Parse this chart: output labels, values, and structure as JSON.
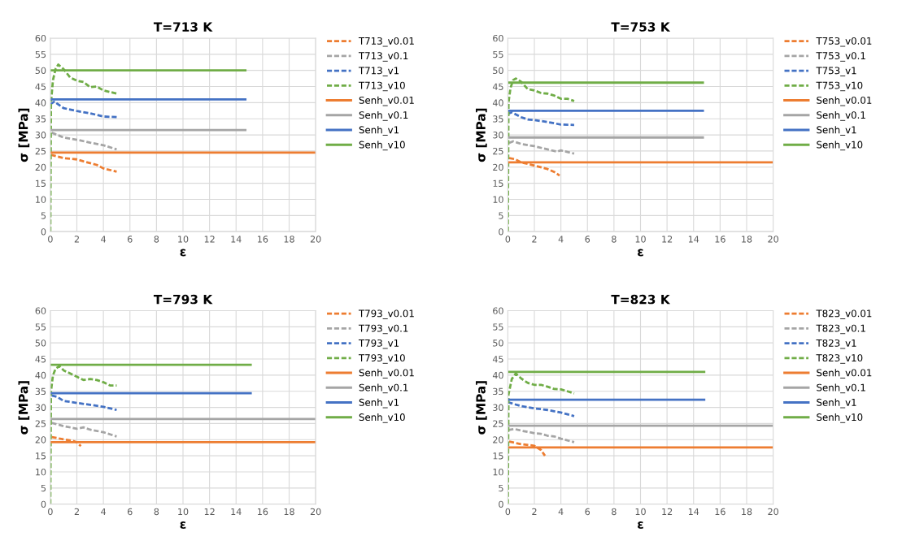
{
  "chart_data": [
    {
      "type": "line",
      "title": "T=713 K",
      "xlabel": "ε",
      "ylabel": "σ [MPa]",
      "xlim": [
        0,
        20
      ],
      "ylim": [
        0,
        60
      ],
      "xticks": [
        0,
        2,
        4,
        6,
        8,
        10,
        12,
        14,
        16,
        18,
        20
      ],
      "yticks": [
        0,
        5,
        10,
        15,
        20,
        25,
        30,
        35,
        40,
        45,
        50,
        55,
        60
      ],
      "grid": true,
      "legend": "top right",
      "marker": "none",
      "series": [
        {
          "name": "T713_v0.01",
          "color": "#ed7d31",
          "line_style": "dashed",
          "x": [
            0.05,
            1,
            2,
            2.5,
            3.5,
            4,
            5
          ],
          "values": [
            23.8,
            22.8,
            22.4,
            21.8,
            20.7,
            19.6,
            18.6
          ]
        },
        {
          "name": "T713_v0.1",
          "color": "#a5a5a5",
          "line_style": "dashed",
          "x": [
            0.1,
            1,
            2,
            3,
            4,
            5
          ],
          "values": [
            30.7,
            29.2,
            28.5,
            27.6,
            26.8,
            25.5
          ]
        },
        {
          "name": "T713_v1",
          "color": "#4472c4",
          "line_style": "dashed",
          "x": [
            0,
            0.3,
            1,
            2,
            3,
            4,
            5
          ],
          "values": [
            39.5,
            40.3,
            38.3,
            37.4,
            36.7,
            35.7,
            35.5
          ]
        },
        {
          "name": "T713_v10",
          "color": "#70ad47",
          "line_style": "dashed",
          "x": [
            0,
            0.05,
            0.2,
            0.4,
            0.6,
            1,
            1.5,
            2,
            2.5,
            3,
            3.5,
            4,
            5
          ],
          "values": [
            0,
            40,
            47,
            50.5,
            51.8,
            50.4,
            47.8,
            46.8,
            46.4,
            44.8,
            45,
            43.8,
            42.8
          ]
        },
        {
          "name": "Senh_v0.01",
          "color": "#ed7d31",
          "line_style": "solid",
          "x": [
            0,
            20
          ],
          "values": [
            24.5,
            24.5
          ]
        },
        {
          "name": "Senh_v0.1",
          "color": "#a5a5a5",
          "line_style": "solid",
          "x": [
            0,
            14.7
          ],
          "values": [
            31.5,
            31.5
          ]
        },
        {
          "name": "Senh_v1",
          "color": "#4472c4",
          "line_style": "solid",
          "x": [
            0,
            14.7
          ],
          "values": [
            41,
            41
          ]
        },
        {
          "name": "Senh_v10",
          "color": "#70ad47",
          "line_style": "solid",
          "x": [
            0,
            14.7
          ],
          "values": [
            50,
            50
          ]
        }
      ]
    },
    {
      "type": "line",
      "title": "T=753 K",
      "xlabel": "ε",
      "ylabel": "σ [MPa]",
      "xlim": [
        0,
        20
      ],
      "ylim": [
        0,
        60
      ],
      "xticks": [
        0,
        2,
        4,
        6,
        8,
        10,
        12,
        14,
        16,
        18,
        20
      ],
      "yticks": [
        0,
        5,
        10,
        15,
        20,
        25,
        30,
        35,
        40,
        45,
        50,
        55,
        60
      ],
      "grid": true,
      "legend": "top right",
      "marker": "none",
      "series": [
        {
          "name": "T753_v0.01",
          "color": "#ed7d31",
          "line_style": "dashed",
          "x": [
            0.1,
            0.5,
            1,
            2,
            3,
            3.5,
            3.9
          ],
          "values": [
            22.8,
            22.5,
            21.5,
            20.5,
            19.4,
            18.5,
            17.4
          ]
        },
        {
          "name": "T753_v0.1",
          "color": "#a5a5a5",
          "line_style": "dashed",
          "x": [
            0.1,
            0.4,
            1,
            2,
            3,
            3.7,
            4,
            5
          ],
          "values": [
            27.5,
            28,
            27.2,
            26.5,
            25.5,
            24.8,
            25.2,
            24.2
          ]
        },
        {
          "name": "T753_v1",
          "color": "#4472c4",
          "line_style": "dashed",
          "x": [
            0,
            0.3,
            1,
            1.5,
            2,
            3,
            4,
            5
          ],
          "values": [
            36.5,
            37,
            35.5,
            34.8,
            34.6,
            34,
            33.2,
            33.1
          ]
        },
        {
          "name": "T753_v10",
          "color": "#70ad47",
          "line_style": "dashed",
          "x": [
            0,
            0.05,
            0.2,
            0.4,
            0.6,
            1,
            1.5,
            2,
            2.5,
            3,
            3.5,
            4,
            4.5,
            5
          ],
          "values": [
            0,
            40,
            44.5,
            47,
            47.5,
            46.5,
            44.2,
            43.8,
            43,
            42.8,
            42.2,
            41.2,
            41.2,
            40.5
          ]
        },
        {
          "name": "Senh_v0.01",
          "color": "#ed7d31",
          "line_style": "solid",
          "x": [
            0,
            20
          ],
          "values": [
            21.5,
            21.5
          ]
        },
        {
          "name": "Senh_v0.1",
          "color": "#a5a5a5",
          "line_style": "solid",
          "x": [
            0,
            14.7
          ],
          "values": [
            29.2,
            29.2
          ]
        },
        {
          "name": "Senh_v1",
          "color": "#4472c4",
          "line_style": "solid",
          "x": [
            0,
            14.7
          ],
          "values": [
            37.5,
            37.5
          ]
        },
        {
          "name": "Senh_v10",
          "color": "#70ad47",
          "line_style": "solid",
          "x": [
            0,
            14.7
          ],
          "values": [
            46.2,
            46.2
          ]
        }
      ]
    },
    {
      "type": "line",
      "title": "T=793 K",
      "xlabel": "ε",
      "ylabel": "σ [MPa]",
      "xlim": [
        0,
        20
      ],
      "ylim": [
        0,
        60
      ],
      "xticks": [
        0,
        2,
        4,
        6,
        8,
        10,
        12,
        14,
        16,
        18,
        20
      ],
      "yticks": [
        0,
        5,
        10,
        15,
        20,
        25,
        30,
        35,
        40,
        45,
        50,
        55,
        60
      ],
      "grid": true,
      "legend": "top right",
      "marker": "none",
      "series": [
        {
          "name": "T793_v0.01",
          "color": "#ed7d31",
          "line_style": "dashed",
          "x": [
            0.1,
            1,
            1.7,
            2,
            2.3
          ],
          "values": [
            20.8,
            20.1,
            19.6,
            19.2,
            18
          ]
        },
        {
          "name": "T793_v0.1",
          "color": "#a5a5a5",
          "line_style": "dashed",
          "x": [
            0.1,
            1,
            2,
            2.5,
            3,
            4,
            5
          ],
          "values": [
            25.2,
            24.2,
            23.4,
            23.8,
            23.1,
            22.3,
            21
          ]
        },
        {
          "name": "T793_v1",
          "color": "#4472c4",
          "line_style": "dashed",
          "x": [
            0.1,
            0.5,
            1,
            2,
            3,
            4,
            5
          ],
          "values": [
            33.7,
            33.3,
            32,
            31.4,
            30.8,
            30.2,
            29.2
          ]
        },
        {
          "name": "T793_v10",
          "color": "#70ad47",
          "line_style": "dashed",
          "x": [
            0,
            0.05,
            0.2,
            0.4,
            0.7,
            1,
            2,
            2.5,
            3,
            3.5,
            4,
            4.5,
            5
          ],
          "values": [
            0,
            35,
            40,
            42,
            42.8,
            41.5,
            39.5,
            38.5,
            38.8,
            38.5,
            37.8,
            36.8,
            36.8
          ]
        },
        {
          "name": "Senh_v0.01",
          "color": "#ed7d31",
          "line_style": "solid",
          "x": [
            0,
            20
          ],
          "values": [
            19.2,
            19.2
          ]
        },
        {
          "name": "Senh_v0.1",
          "color": "#a5a5a5",
          "line_style": "solid",
          "x": [
            0,
            20
          ],
          "values": [
            26.4,
            26.4
          ]
        },
        {
          "name": "Senh_v1",
          "color": "#4472c4",
          "line_style": "solid",
          "x": [
            0,
            15.1
          ],
          "values": [
            34.4,
            34.4
          ]
        },
        {
          "name": "Senh_v10",
          "color": "#70ad47",
          "line_style": "solid",
          "x": [
            0,
            15.1
          ],
          "values": [
            43.2,
            43.2
          ]
        }
      ]
    },
    {
      "type": "line",
      "title": "T=823 K",
      "xlabel": "ε",
      "ylabel": "σ [MPa]",
      "xlim": [
        0,
        20
      ],
      "ylim": [
        0,
        60
      ],
      "xticks": [
        0,
        2,
        4,
        6,
        8,
        10,
        12,
        14,
        16,
        18,
        20
      ],
      "yticks": [
        0,
        5,
        10,
        15,
        20,
        25,
        30,
        35,
        40,
        45,
        50,
        55,
        60
      ],
      "grid": true,
      "legend": "top right",
      "marker": "none",
      "series": [
        {
          "name": "T823_v0.01",
          "color": "#ed7d31",
          "line_style": "dashed",
          "x": [
            0.1,
            1,
            2,
            2.5,
            2.8
          ],
          "values": [
            19.4,
            18.6,
            18.1,
            16.8,
            15
          ]
        },
        {
          "name": "T823_v0.1",
          "color": "#a5a5a5",
          "line_style": "dashed",
          "x": [
            0.05,
            0.5,
            1,
            2,
            2.5,
            3,
            3.5,
            4,
            5
          ],
          "values": [
            23,
            23.3,
            22.8,
            22,
            21.8,
            21.2,
            21,
            20.3,
            19.2
          ]
        },
        {
          "name": "T823_v1",
          "color": "#4472c4",
          "line_style": "dashed",
          "x": [
            0,
            1,
            2,
            3,
            4,
            5
          ],
          "values": [
            31.6,
            30.4,
            29.7,
            29.2,
            28.4,
            27.3
          ]
        },
        {
          "name": "T823_v10",
          "color": "#70ad47",
          "line_style": "dashed",
          "x": [
            0,
            0.05,
            0.3,
            0.6,
            1,
            1.5,
            2,
            2.5,
            3,
            3.5,
            4,
            4.5,
            5
          ],
          "values": [
            0,
            34,
            38.8,
            40.5,
            39,
            37.6,
            37,
            37,
            36.4,
            35.7,
            35.6,
            35,
            34.3
          ]
        },
        {
          "name": "Senh_v0.01",
          "color": "#ed7d31",
          "line_style": "solid",
          "x": [
            0,
            20
          ],
          "values": [
            17.6,
            17.6
          ]
        },
        {
          "name": "Senh_v0.1",
          "color": "#a5a5a5",
          "line_style": "solid",
          "x": [
            0,
            20
          ],
          "values": [
            24.3,
            24.3
          ]
        },
        {
          "name": "Senh_v1",
          "color": "#4472c4",
          "line_style": "solid",
          "x": [
            0,
            14.8
          ],
          "values": [
            32.4,
            32.4
          ]
        },
        {
          "name": "Senh_v10",
          "color": "#70ad47",
          "line_style": "solid",
          "x": [
            0,
            14.8
          ],
          "values": [
            41,
            41
          ]
        }
      ]
    }
  ]
}
